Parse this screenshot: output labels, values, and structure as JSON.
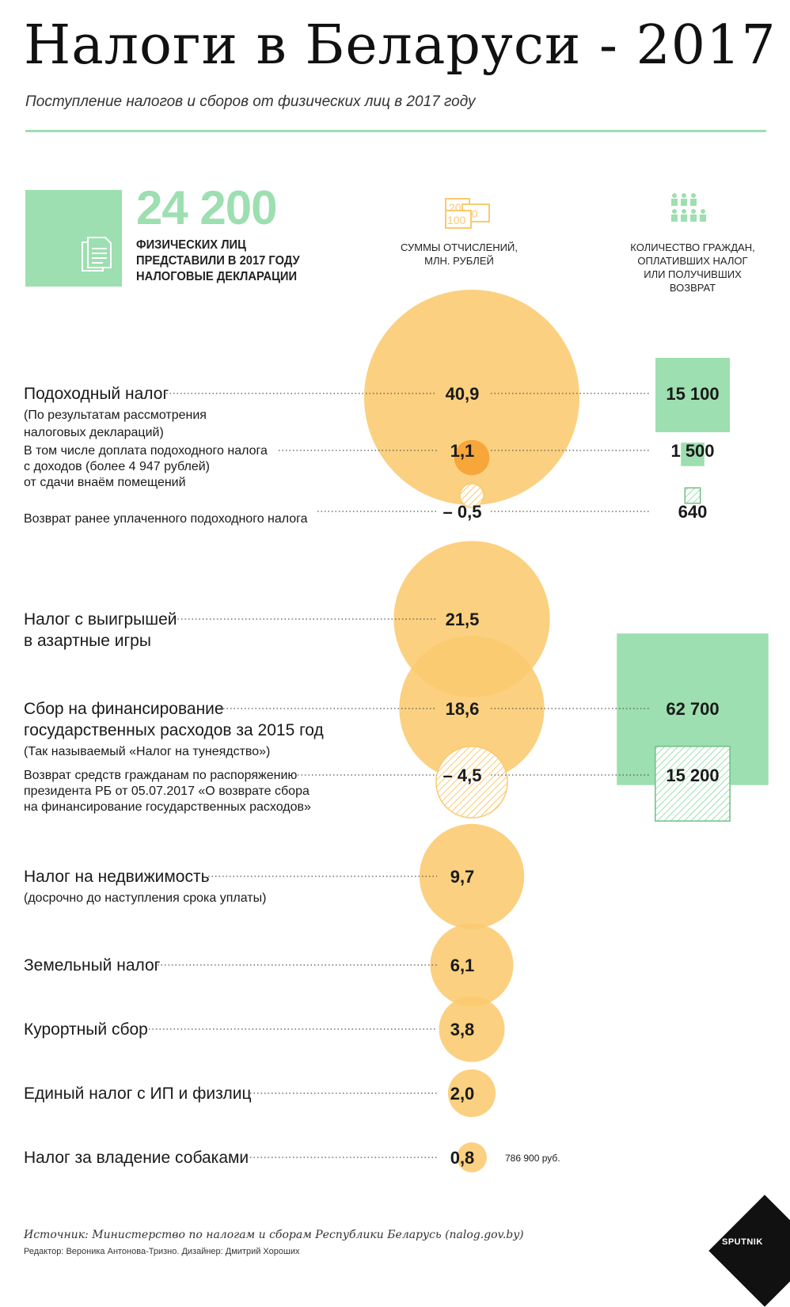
{
  "header": {
    "title": "Налоги в Беларуси - 2017",
    "subtitle": "Поступление налогов и сборов от физических лиц в 2017 году"
  },
  "summary": {
    "number": "24 200",
    "caption_lines": [
      "ФИЗИЧЕСКИХ ЛИЦ",
      "ПРЕДСТАВИЛИ В 2017 ГОДУ",
      "НАЛОГОВЫЕ ДЕКЛАРАЦИИ"
    ]
  },
  "columns": {
    "amounts_header": [
      "СУММЫ ОТЧИСЛЕНИЙ,",
      "МЛН. РУБЛЕЙ"
    ],
    "people_header": [
      "КОЛИЧЕСТВО ГРАЖДАН,",
      "ОПЛАТИВШИХ НАЛОГ",
      "ИЛИ ПОЛУЧИВШИХ",
      "ВОЗВРАТ"
    ],
    "money_icon_labels": [
      "20",
      "50",
      "100"
    ]
  },
  "colors": {
    "orange": "#fbc96e",
    "orange_dark": "#f7a63a",
    "green": "#9ddfb0",
    "green_hatch": "#6fbf86"
  },
  "chart_data": {
    "type": "bubble",
    "title": "Налоги в Беларуси - 2017",
    "units_value": "млн. рублей",
    "units_count": "количество граждан",
    "items": [
      {
        "id": "income",
        "label": [
          "Подоходный налог"
        ],
        "note": [
          "(По результатам рассмотрения",
          "налоговых деклараций)"
        ],
        "value": 40.9,
        "value_label": "40,9",
        "count": 15100,
        "count_label": "15 100",
        "style": "solid"
      },
      {
        "id": "income-extra",
        "label": [
          "В том числе доплата подоходного налога",
          "с доходов (более 4 947 рублей)",
          "от сдачи внаём помещений"
        ],
        "note": [],
        "value": 1.1,
        "value_label": "1,1",
        "count": 1500,
        "count_label": "1 500",
        "style": "dark"
      },
      {
        "id": "income-refund",
        "label": [
          "Возврат ранее уплаченного подоходного налога"
        ],
        "note": [],
        "value": -0.5,
        "value_label": "– 0,5",
        "count": 640,
        "count_label": "640",
        "style": "hatch"
      },
      {
        "id": "gambling",
        "label": [
          "Налог с выигрышей",
          "в азартные игры"
        ],
        "note": [],
        "value": 21.5,
        "value_label": "21,5",
        "count": null,
        "count_label": "",
        "style": "solid"
      },
      {
        "id": "parasite",
        "label": [
          "Сбор на финансирование",
          "государственных расходов за 2015 год"
        ],
        "note": [
          "(Так называемый «Налог на тунеядство»)"
        ],
        "value": 18.6,
        "value_label": "18,6",
        "count": 62700,
        "count_label": "62 700",
        "style": "solid"
      },
      {
        "id": "parasite-refund",
        "label": [
          "Возврат средств гражданам по распоряжению",
          "президента РБ от 05.07.2017 «О возврате сбора",
          "на финансирование государственных расходов»"
        ],
        "note": [],
        "value": -4.5,
        "value_label": "– 4,5",
        "count": 15200,
        "count_label": "15 200",
        "style": "hatch"
      },
      {
        "id": "realty",
        "label": [
          "Налог на недвижимость"
        ],
        "note": [
          "(досрочно до наступления срока уплаты)"
        ],
        "value": 9.7,
        "value_label": "9,7",
        "count": null,
        "count_label": "",
        "style": "solid"
      },
      {
        "id": "land",
        "label": [
          "Земельный налог"
        ],
        "note": [],
        "value": 6.1,
        "value_label": "6,1",
        "count": null,
        "count_label": "",
        "style": "solid"
      },
      {
        "id": "resort",
        "label": [
          "Курортный сбор"
        ],
        "note": [],
        "value": 3.8,
        "value_label": "3,8",
        "count": null,
        "count_label": "",
        "style": "solid"
      },
      {
        "id": "single",
        "label": [
          "Единый налог с ИП и физлиц"
        ],
        "note": [],
        "value": 2.0,
        "value_label": "2,0",
        "count": null,
        "count_label": "",
        "style": "solid"
      },
      {
        "id": "dogs",
        "label": [
          "Налог за владение собаками"
        ],
        "note": [],
        "value": 0.8,
        "value_label": "0,8",
        "count": null,
        "count_label": "",
        "style": "solid",
        "extra": "786 900 руб."
      }
    ]
  },
  "footer": {
    "source": "Источник: Министерство по налогам и сборам Республики Беларусь (nalog.gov.by)",
    "credits": "Редактор: Вероника Антонова-Тризно. Дизайнер: Дмитрий Хороших",
    "logo": "SPUTNIK"
  }
}
